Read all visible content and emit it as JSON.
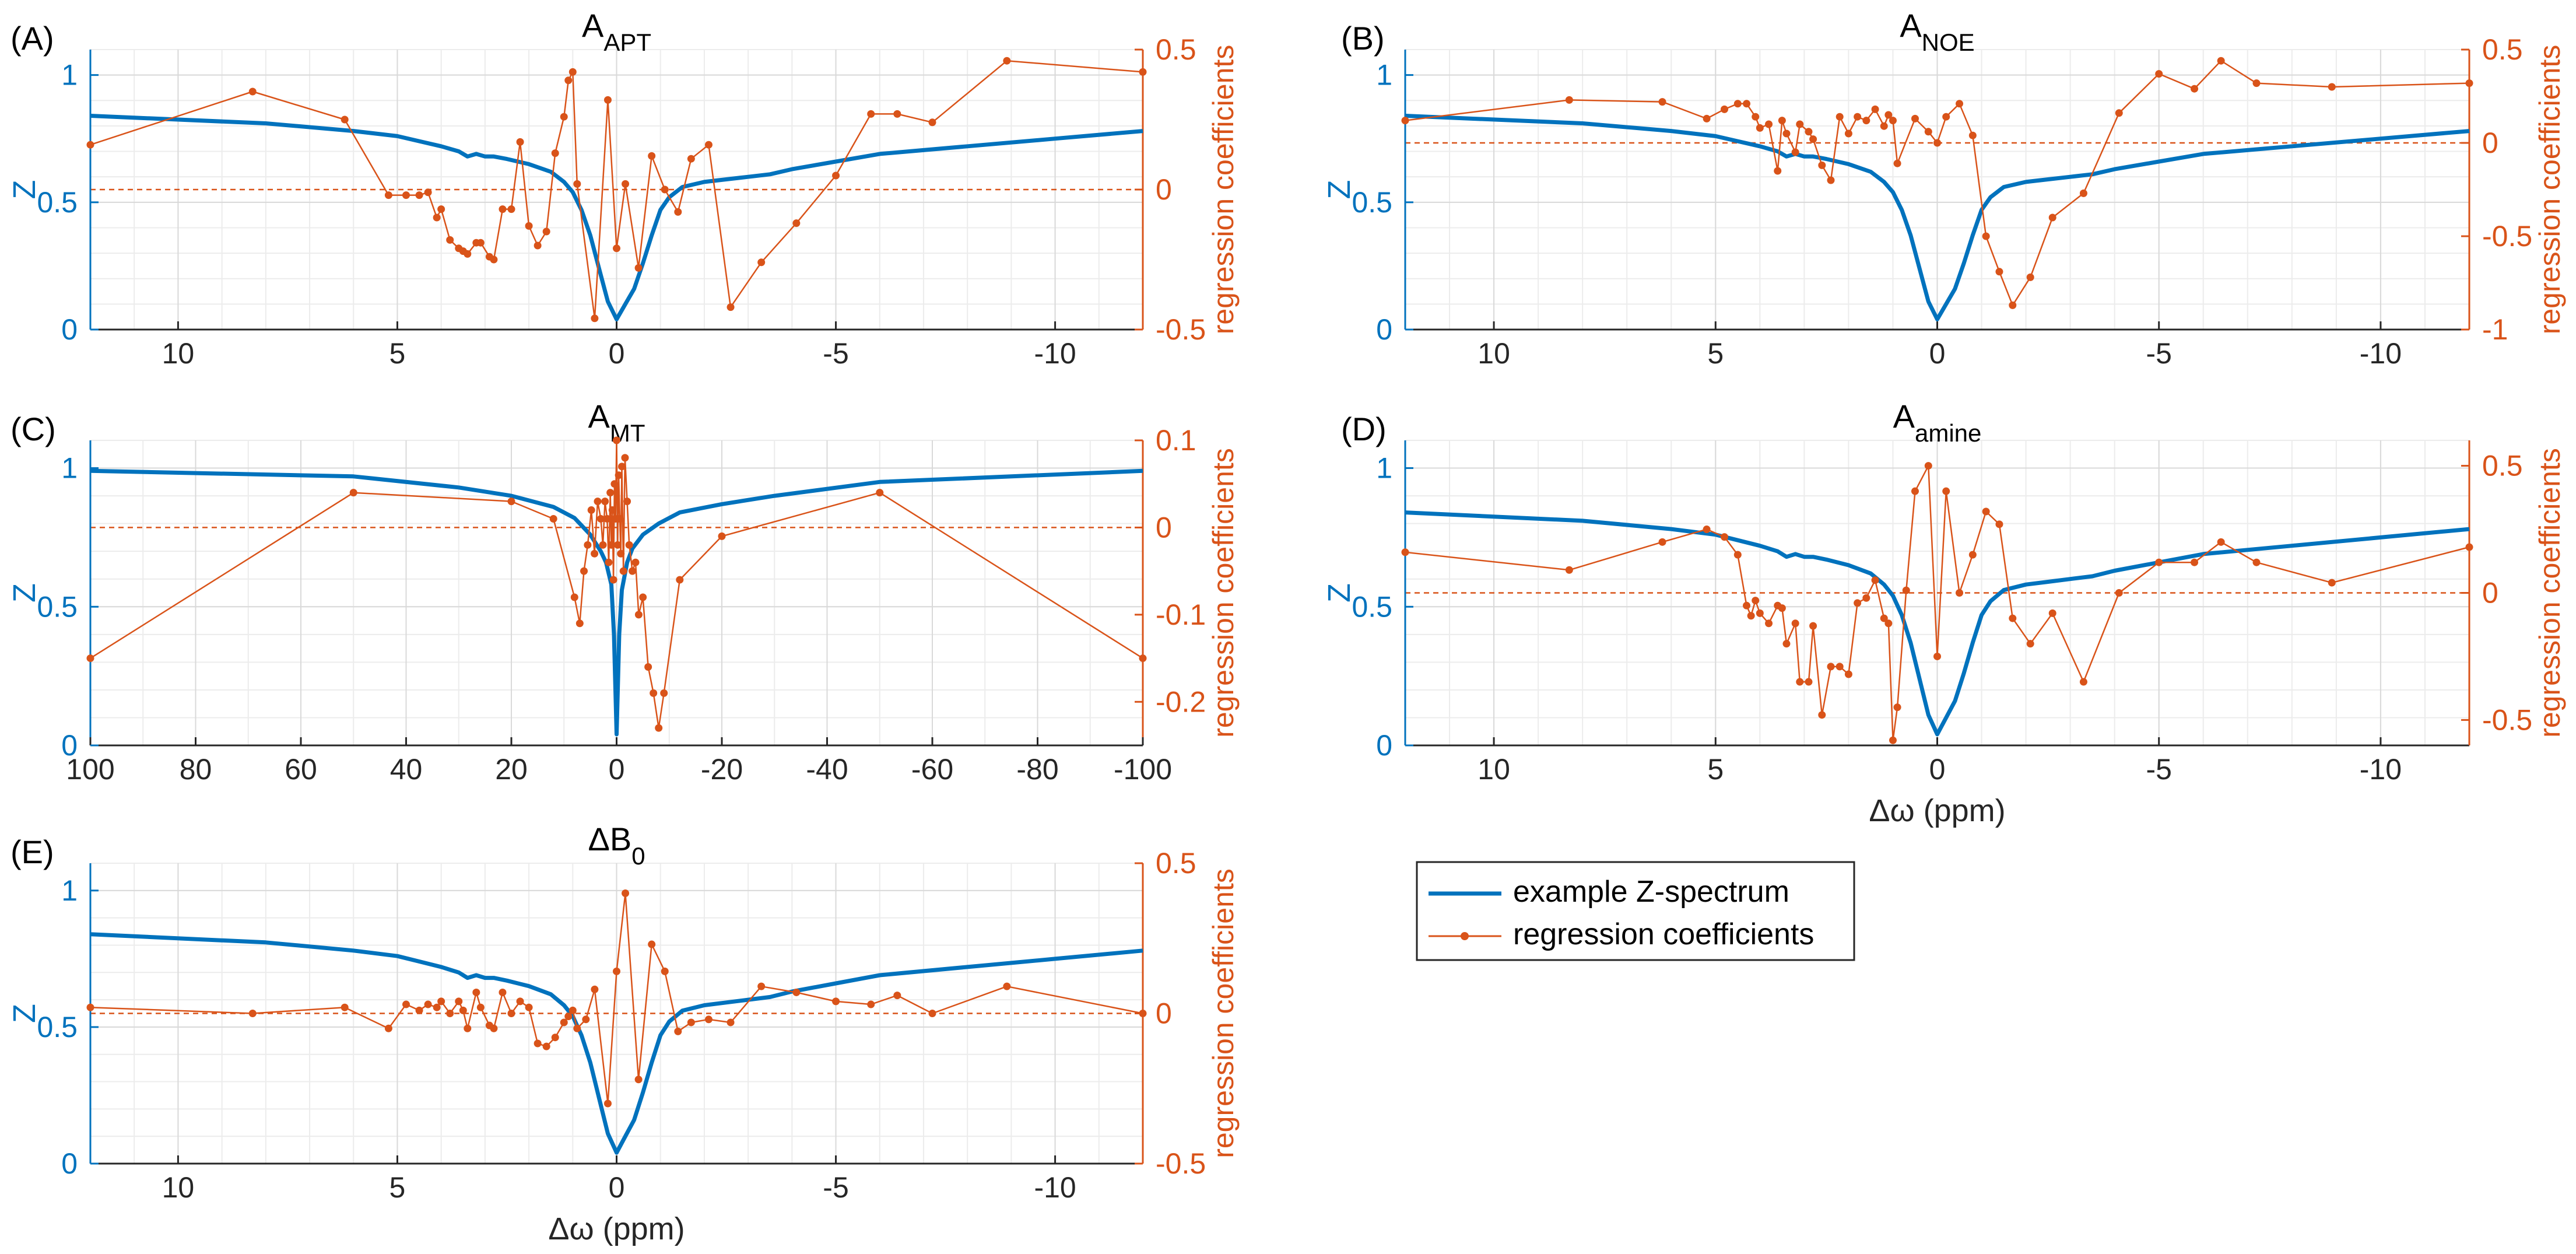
{
  "figure": {
    "legend": {
      "entries": [
        {
          "label": "example Z-spectrum",
          "color": "#0072BD",
          "style": "line"
        },
        {
          "label": "regression coefficients",
          "color": "#D95319",
          "style": "line-dot"
        }
      ]
    },
    "colors": {
      "left": "#0072BD",
      "right": "#D95319",
      "grid": "#ececec",
      "axis": "#262626"
    },
    "fontsize": 2.8
  },
  "chart_data": [
    {
      "panel": "(A)",
      "title_main": "A",
      "title_sub": "APT",
      "type": "line",
      "xlabel": "",
      "xlim": [
        12,
        -12
      ],
      "xticks": [
        10,
        5,
        0,
        -5,
        -10
      ],
      "ylabel": "Z",
      "ylim": [
        0,
        1.1
      ],
      "yticks": [
        0,
        0.5,
        1
      ],
      "y2label": "regression coefficients",
      "y2lim": [
        -0.5,
        0.5
      ],
      "y2ticks": [
        -0.5,
        0,
        0.5
      ],
      "series": [
        {
          "name": "example Z-spectrum",
          "axis": "left",
          "markers": false,
          "x": [
            12,
            8,
            6,
            5,
            4.5,
            4,
            3.6,
            3.4,
            3.2,
            3,
            2.8,
            2.5,
            2,
            1.5,
            1.2,
            1,
            0.8,
            0.6,
            0.4,
            0.2,
            0,
            -0.2,
            -0.4,
            -0.6,
            -0.8,
            -1,
            -1.2,
            -1.5,
            -2,
            -2.5,
            -3,
            -3.5,
            -4,
            -5,
            -6,
            -8,
            -10,
            -12
          ],
          "y": [
            0.84,
            0.81,
            0.78,
            0.76,
            0.74,
            0.72,
            0.7,
            0.68,
            0.69,
            0.68,
            0.68,
            0.67,
            0.65,
            0.62,
            0.58,
            0.54,
            0.47,
            0.37,
            0.24,
            0.11,
            0.04,
            0.1,
            0.16,
            0.26,
            0.37,
            0.47,
            0.52,
            0.56,
            0.58,
            0.59,
            0.6,
            0.61,
            0.63,
            0.66,
            0.69,
            0.72,
            0.75,
            0.78
          ]
        },
        {
          "name": "regression coefficients",
          "axis": "right",
          "markers": true,
          "x": [
            12,
            8.3,
            6.2,
            5.2,
            4.8,
            4.5,
            4.3,
            4.1,
            4.0,
            3.8,
            3.6,
            3.5,
            3.4,
            3.2,
            3.1,
            2.9,
            2.8,
            2.6,
            2.4,
            2.2,
            2.0,
            1.8,
            1.6,
            1.4,
            1.2,
            1.1,
            1.0,
            0.9,
            0.5,
            0.2,
            0,
            -0.2,
            -0.5,
            -0.8,
            -1.1,
            -1.4,
            -1.7,
            -2.1,
            -2.6,
            -3.3,
            -4.1,
            -5,
            -5.8,
            -6.4,
            -7.2,
            -8.9,
            -12
          ],
          "y": [
            0.16,
            0.35,
            0.25,
            -0.02,
            -0.02,
            -0.02,
            -0.01,
            -0.1,
            -0.07,
            -0.18,
            -0.21,
            -0.22,
            -0.23,
            -0.19,
            -0.19,
            -0.24,
            -0.25,
            -0.07,
            -0.07,
            0.17,
            -0.13,
            -0.2,
            -0.15,
            0.13,
            0.26,
            0.39,
            0.42,
            0.02,
            -0.46,
            0.32,
            -0.21,
            0.02,
            -0.28,
            0.12,
            0.0,
            -0.08,
            0.11,
            0.16,
            -0.42,
            -0.26,
            -0.12,
            0.05,
            0.27,
            0.27,
            0.24,
            0.46,
            0.42
          ]
        }
      ]
    },
    {
      "panel": "(B)",
      "title_main": "A",
      "title_sub": "NOE",
      "type": "line",
      "xlabel": "",
      "xlim": [
        12,
        -12
      ],
      "xticks": [
        10,
        5,
        0,
        -5,
        -10
      ],
      "ylabel": "Z",
      "ylim": [
        0,
        1.1
      ],
      "yticks": [
        0,
        0.5,
        1
      ],
      "y2label": "regression coefficients",
      "y2lim": [
        -1,
        0.5
      ],
      "y2ticks": [
        -1,
        -0.5,
        0,
        0.5
      ],
      "series": [
        {
          "name": "example Z-spectrum",
          "axis": "left",
          "markers": false,
          "x": [
            12,
            8,
            6,
            5,
            4.5,
            4,
            3.6,
            3.4,
            3.2,
            3,
            2.8,
            2.5,
            2,
            1.5,
            1.2,
            1,
            0.8,
            0.6,
            0.4,
            0.2,
            0,
            -0.2,
            -0.4,
            -0.6,
            -0.8,
            -1,
            -1.2,
            -1.5,
            -2,
            -2.5,
            -3,
            -3.5,
            -4,
            -5,
            -6,
            -8,
            -10,
            -12
          ],
          "y": [
            0.84,
            0.81,
            0.78,
            0.76,
            0.74,
            0.72,
            0.7,
            0.68,
            0.69,
            0.68,
            0.68,
            0.67,
            0.65,
            0.62,
            0.58,
            0.54,
            0.47,
            0.37,
            0.24,
            0.11,
            0.04,
            0.1,
            0.16,
            0.26,
            0.37,
            0.47,
            0.52,
            0.56,
            0.58,
            0.59,
            0.6,
            0.61,
            0.63,
            0.66,
            0.69,
            0.72,
            0.75,
            0.78
          ]
        },
        {
          "name": "regression coefficients",
          "axis": "right",
          "markers": true,
          "x": [
            12,
            8.3,
            6.2,
            5.2,
            4.8,
            4.5,
            4.3,
            4.1,
            4.0,
            3.8,
            3.6,
            3.5,
            3.4,
            3.2,
            3.1,
            2.9,
            2.8,
            2.6,
            2.4,
            2.2,
            2.0,
            1.8,
            1.6,
            1.4,
            1.2,
            1.1,
            1.0,
            0.9,
            0.5,
            0.2,
            0,
            -0.2,
            -0.5,
            -0.8,
            -1.1,
            -1.4,
            -1.7,
            -2.1,
            -2.6,
            -3.3,
            -4.1,
            -5,
            -5.8,
            -6.4,
            -7.2,
            -8.9,
            -12
          ],
          "y": [
            0.12,
            0.23,
            0.22,
            0.13,
            0.18,
            0.21,
            0.21,
            0.14,
            0.08,
            0.1,
            -0.15,
            0.12,
            0.05,
            -0.05,
            0.1,
            0.06,
            0.02,
            -0.12,
            -0.2,
            0.14,
            0.05,
            0.14,
            0.12,
            0.18,
            0.09,
            0.15,
            0.12,
            -0.11,
            0.13,
            0.06,
            0.0,
            0.14,
            0.21,
            0.04,
            -0.5,
            -0.69,
            -0.87,
            -0.72,
            -0.4,
            -0.27,
            0.16,
            0.37,
            0.29,
            0.44,
            0.32,
            0.3,
            0.32
          ]
        }
      ]
    },
    {
      "panel": "(C)",
      "title_main": "A",
      "title_sub": "MT",
      "type": "line",
      "xlabel": "",
      "xlim": [
        100,
        -100
      ],
      "xticks": [
        100,
        80,
        60,
        40,
        20,
        0,
        -20,
        -40,
        -60,
        -80,
        -100
      ],
      "ylabel": "Z",
      "ylim": [
        0,
        1.1
      ],
      "yticks": [
        0,
        0.5,
        1
      ],
      "y2label": "regression coefficients",
      "y2lim": [
        -0.25,
        0.1
      ],
      "y2ticks": [
        -0.2,
        -0.1,
        0,
        0.1
      ],
      "series": [
        {
          "name": "example Z-spectrum",
          "axis": "left",
          "markers": false,
          "x": [
            100,
            50,
            30,
            20,
            12,
            8,
            5,
            3,
            2,
            1,
            0.5,
            0,
            -0.5,
            -1,
            -2,
            -3,
            -5,
            -8,
            -12,
            -20,
            -30,
            -50,
            -100
          ],
          "y": [
            0.99,
            0.97,
            0.93,
            0.9,
            0.86,
            0.82,
            0.76,
            0.7,
            0.66,
            0.58,
            0.4,
            0.04,
            0.4,
            0.56,
            0.66,
            0.71,
            0.76,
            0.8,
            0.84,
            0.87,
            0.9,
            0.95,
            0.99
          ]
        },
        {
          "name": "regression coefficients",
          "axis": "right",
          "markers": true,
          "x": [
            100,
            50,
            20,
            12,
            8,
            7,
            6.2,
            5.5,
            4.8,
            4.2,
            3.6,
            3,
            2.6,
            2.2,
            1.8,
            1.5,
            1.2,
            1,
            0.8,
            0.6,
            0.4,
            0.2,
            0,
            -0.2,
            -0.4,
            -0.6,
            -0.8,
            -1,
            -1.3,
            -1.6,
            -2,
            -2.4,
            -3,
            -3.6,
            -4.2,
            -5,
            -6,
            -7,
            -8,
            -9,
            -12,
            -20,
            -50,
            -100
          ],
          "y": [
            -0.15,
            0.04,
            0.03,
            0.01,
            -0.08,
            -0.11,
            -0.05,
            -0.02,
            0.02,
            -0.03,
            0.03,
            0.01,
            -0.02,
            0.03,
            0.01,
            -0.04,
            0.04,
            -0.02,
            0.02,
            -0.06,
            0.05,
            0.01,
            0.1,
            -0.02,
            0.06,
            0.01,
            -0.03,
            0.07,
            -0.05,
            0.08,
            0.03,
            -0.02,
            -0.05,
            -0.04,
            -0.1,
            -0.08,
            -0.16,
            -0.19,
            -0.23,
            -0.19,
            -0.06,
            -0.01,
            0.04,
            -0.15
          ]
        }
      ]
    },
    {
      "panel": "(D)",
      "title_main": "A",
      "title_sub": "amine",
      "type": "line",
      "xlabel": "Δω (ppm)",
      "xlim": [
        12,
        -12
      ],
      "xticks": [
        10,
        5,
        0,
        -5,
        -10
      ],
      "ylabel": "Z",
      "ylim": [
        0,
        1.1
      ],
      "yticks": [
        0,
        0.5,
        1
      ],
      "y2label": "regression coefficients",
      "y2lim": [
        -0.6,
        0.6
      ],
      "y2ticks": [
        -0.5,
        0,
        0.5
      ],
      "series": [
        {
          "name": "example Z-spectrum",
          "axis": "left",
          "markers": false,
          "x": [
            12,
            8,
            6,
            5,
            4.5,
            4,
            3.6,
            3.4,
            3.2,
            3,
            2.8,
            2.5,
            2,
            1.5,
            1.2,
            1,
            0.8,
            0.6,
            0.4,
            0.2,
            0,
            -0.2,
            -0.4,
            -0.6,
            -0.8,
            -1,
            -1.2,
            -1.5,
            -2,
            -2.5,
            -3,
            -3.5,
            -4,
            -5,
            -6,
            -8,
            -10,
            -12
          ],
          "y": [
            0.84,
            0.81,
            0.78,
            0.76,
            0.74,
            0.72,
            0.7,
            0.68,
            0.69,
            0.68,
            0.68,
            0.67,
            0.65,
            0.62,
            0.58,
            0.54,
            0.47,
            0.37,
            0.24,
            0.11,
            0.04,
            0.1,
            0.16,
            0.26,
            0.37,
            0.47,
            0.52,
            0.56,
            0.58,
            0.59,
            0.6,
            0.61,
            0.63,
            0.66,
            0.69,
            0.72,
            0.75,
            0.78
          ]
        },
        {
          "name": "regression coefficients",
          "axis": "right",
          "markers": true,
          "x": [
            12,
            8.3,
            6.2,
            5.2,
            4.8,
            4.5,
            4.3,
            4.2,
            4.1,
            4.0,
            3.8,
            3.6,
            3.5,
            3.4,
            3.2,
            3.1,
            2.9,
            2.8,
            2.6,
            2.4,
            2.2,
            2.0,
            1.8,
            1.6,
            1.4,
            1.2,
            1.1,
            1.0,
            0.9,
            0.7,
            0.5,
            0.2,
            0,
            -0.2,
            -0.5,
            -0.8,
            -1.1,
            -1.4,
            -1.7,
            -2.1,
            -2.6,
            -3.3,
            -4.1,
            -5,
            -5.8,
            -6.4,
            -7.2,
            -8.9,
            -12
          ],
          "y": [
            0.16,
            0.09,
            0.2,
            0.25,
            0.22,
            0.15,
            -0.05,
            -0.09,
            -0.03,
            -0.08,
            -0.12,
            -0.05,
            -0.06,
            -0.2,
            -0.12,
            -0.35,
            -0.35,
            -0.13,
            -0.48,
            -0.29,
            -0.29,
            -0.32,
            -0.04,
            -0.02,
            0.05,
            -0.1,
            -0.12,
            -0.58,
            -0.45,
            0.01,
            0.4,
            0.5,
            -0.25,
            0.4,
            0.0,
            0.15,
            0.32,
            0.27,
            -0.1,
            -0.2,
            -0.08,
            -0.35,
            0.0,
            0.12,
            0.12,
            0.2,
            0.12,
            0.04,
            0.18
          ]
        }
      ]
    },
    {
      "panel": "(E)",
      "title_main": "ΔB",
      "title_sub": "0",
      "type": "line",
      "xlabel": "Δω (ppm)",
      "xlim": [
        12,
        -12
      ],
      "xticks": [
        10,
        5,
        0,
        -5,
        -10
      ],
      "ylabel": "Z",
      "ylim": [
        0,
        1.1
      ],
      "yticks": [
        0,
        0.5,
        1
      ],
      "y2label": "regression coefficients",
      "y2lim": [
        -0.5,
        0.5
      ],
      "y2ticks": [
        -0.5,
        0,
        0.5
      ],
      "series": [
        {
          "name": "example Z-spectrum",
          "axis": "left",
          "markers": false,
          "x": [
            12,
            8,
            6,
            5,
            4.5,
            4,
            3.6,
            3.4,
            3.2,
            3,
            2.8,
            2.5,
            2,
            1.5,
            1.2,
            1,
            0.8,
            0.6,
            0.4,
            0.2,
            0,
            -0.2,
            -0.4,
            -0.6,
            -0.8,
            -1,
            -1.2,
            -1.5,
            -2,
            -2.5,
            -3,
            -3.5,
            -4,
            -5,
            -6,
            -8,
            -10,
            -12
          ],
          "y": [
            0.84,
            0.81,
            0.78,
            0.76,
            0.74,
            0.72,
            0.7,
            0.68,
            0.69,
            0.68,
            0.68,
            0.67,
            0.65,
            0.62,
            0.58,
            0.54,
            0.47,
            0.37,
            0.24,
            0.11,
            0.04,
            0.1,
            0.16,
            0.26,
            0.37,
            0.47,
            0.52,
            0.56,
            0.58,
            0.59,
            0.6,
            0.61,
            0.63,
            0.66,
            0.69,
            0.72,
            0.75,
            0.78
          ]
        },
        {
          "name": "regression coefficients",
          "axis": "right",
          "markers": true,
          "x": [
            12,
            8.3,
            6.2,
            5.2,
            4.8,
            4.5,
            4.3,
            4.1,
            4.0,
            3.8,
            3.6,
            3.5,
            3.4,
            3.2,
            3.1,
            2.9,
            2.8,
            2.6,
            2.4,
            2.2,
            2.0,
            1.8,
            1.6,
            1.4,
            1.2,
            1.1,
            1.0,
            0.9,
            0.7,
            0.5,
            0.2,
            0,
            -0.2,
            -0.5,
            -0.8,
            -1.1,
            -1.4,
            -1.7,
            -2.1,
            -2.6,
            -3.3,
            -4.1,
            -5,
            -5.8,
            -6.4,
            -7.2,
            -8.9,
            -12
          ],
          "y": [
            0.02,
            0.0,
            0.02,
            -0.05,
            0.03,
            0.01,
            0.03,
            0.02,
            0.04,
            0.0,
            0.04,
            0.01,
            -0.05,
            0.07,
            0.02,
            -0.04,
            -0.05,
            0.07,
            0.0,
            0.04,
            0.02,
            -0.1,
            -0.11,
            -0.08,
            -0.03,
            -0.01,
            0.01,
            -0.05,
            -0.02,
            0.08,
            -0.3,
            0.14,
            0.4,
            -0.22,
            0.23,
            0.14,
            -0.06,
            -0.03,
            -0.02,
            -0.03,
            0.09,
            0.07,
            0.04,
            0.03,
            0.06,
            0.0,
            0.09,
            0.0
          ]
        }
      ]
    }
  ]
}
